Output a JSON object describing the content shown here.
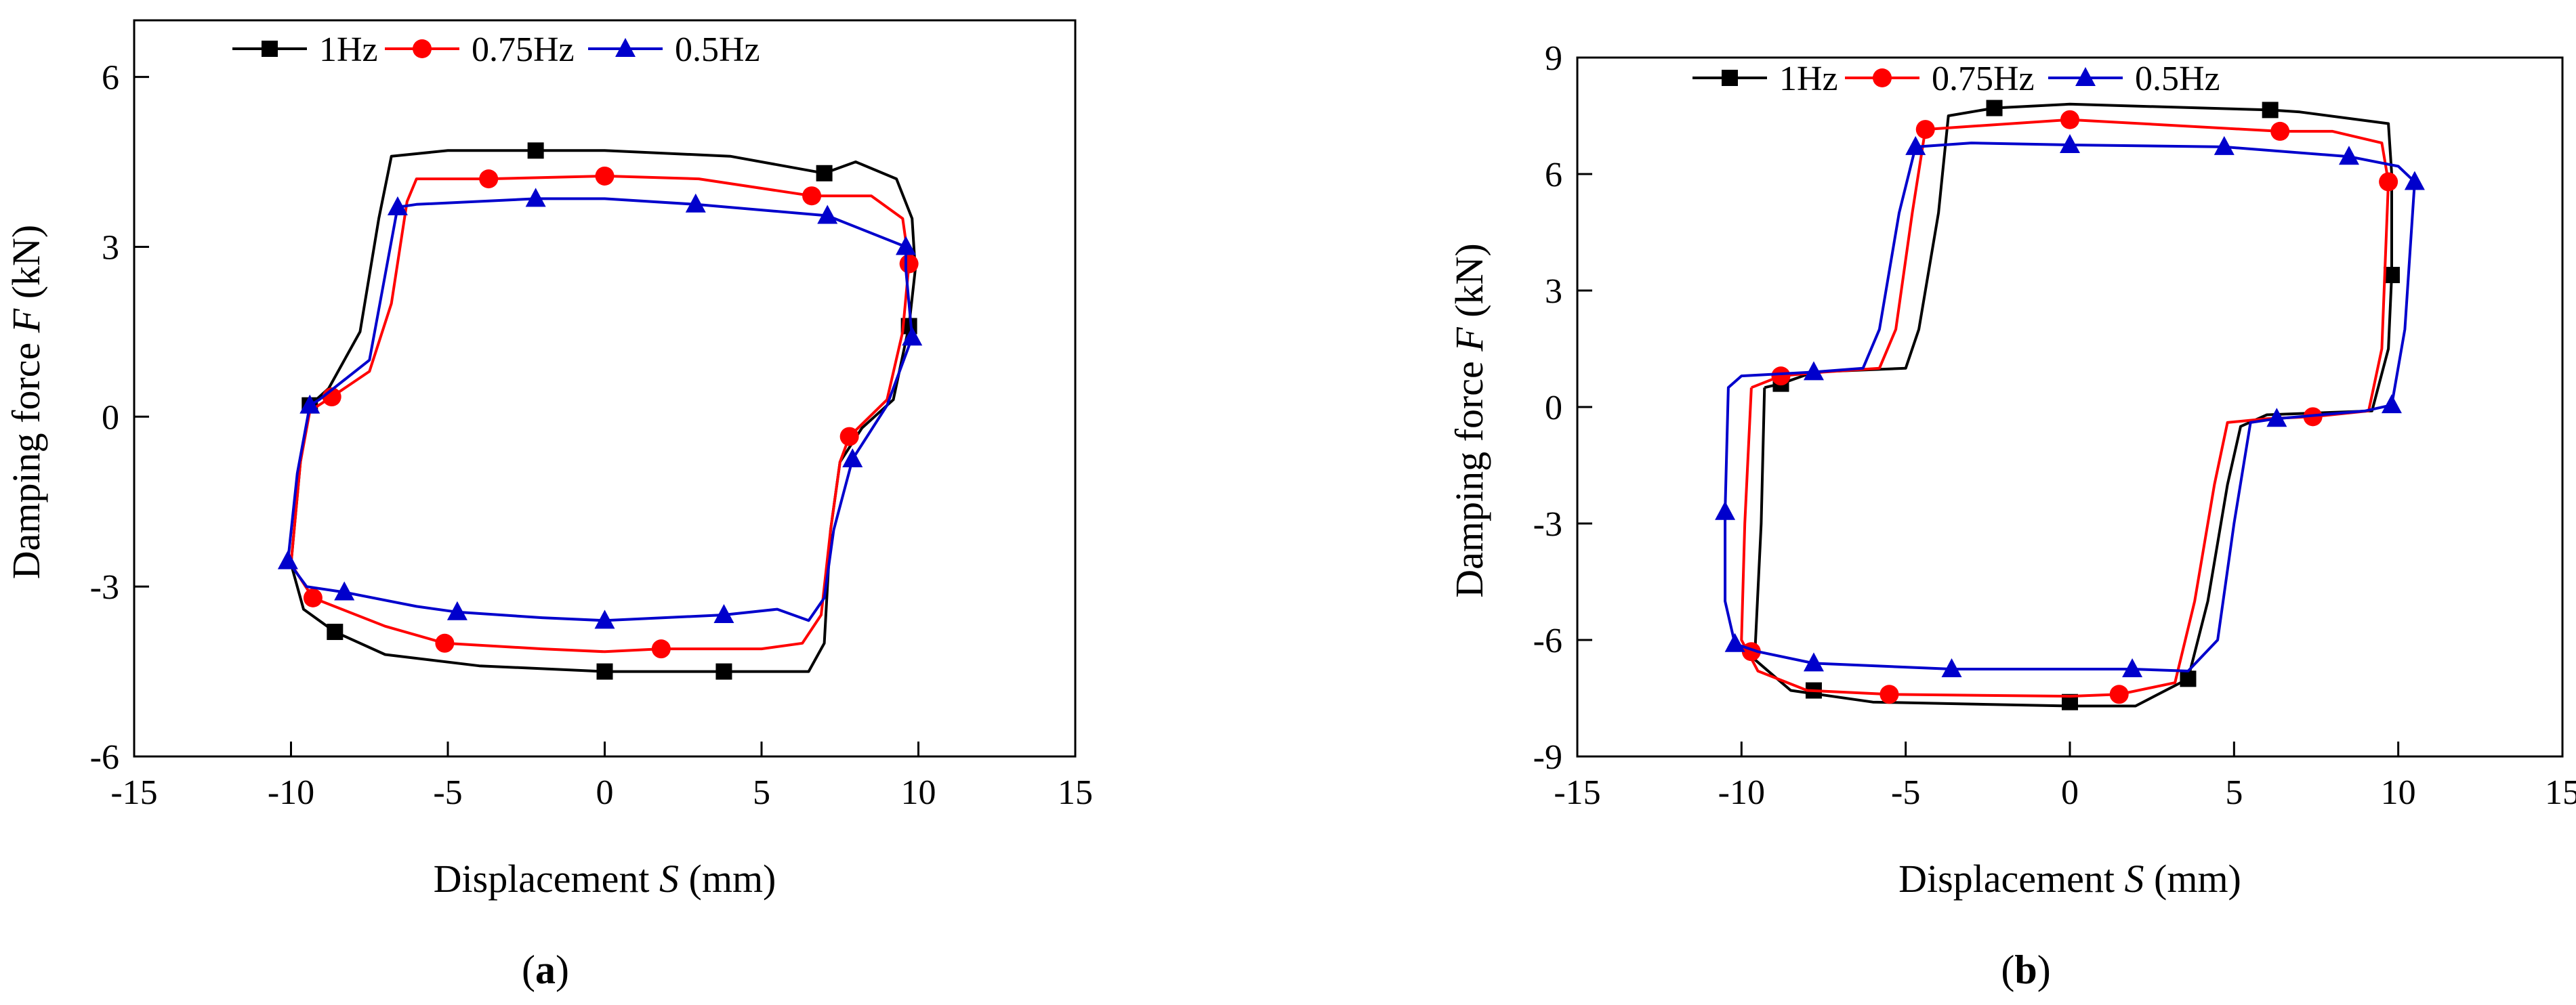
{
  "chart_data": [
    {
      "panel_label": "a",
      "type": "line",
      "xlabel": "Displacement",
      "xlabel_var": "S",
      "xlabel_unit": "(mm)",
      "ylabel": "Damping force",
      "ylabel_var": "F",
      "ylabel_unit": "(kN)",
      "xlim": [
        -15,
        15
      ],
      "ylim": [
        -6,
        7
      ],
      "xticks": [
        -15,
        -10,
        -5,
        0,
        5,
        10,
        15
      ],
      "yticks": [
        -6,
        -3,
        0,
        3,
        6
      ],
      "legend_position": "top",
      "series": [
        {
          "name": "1Hz",
          "color": "#000000",
          "marker": "square",
          "points": [
            [
              -10.0,
              -2.6
            ],
            [
              -9.6,
              -3.4
            ],
            [
              -8.6,
              -3.8
            ],
            [
              -7,
              -4.2
            ],
            [
              -4,
              -4.4
            ],
            [
              0,
              -4.5
            ],
            [
              3.8,
              -4.5
            ],
            [
              6.5,
              -4.5
            ],
            [
              7.0,
              -4.0
            ],
            [
              7.2,
              -2.0
            ],
            [
              7.5,
              -0.8
            ],
            [
              8.2,
              -0.2
            ],
            [
              9.2,
              0.3
            ],
            [
              9.7,
              1.6
            ],
            [
              9.9,
              2.6
            ],
            [
              9.8,
              3.5
            ],
            [
              9.3,
              4.2
            ],
            [
              8,
              4.5
            ],
            [
              7.0,
              4.3
            ],
            [
              4,
              4.6
            ],
            [
              0,
              4.7
            ],
            [
              -2.2,
              4.7
            ],
            [
              -5,
              4.7
            ],
            [
              -6.8,
              4.6
            ],
            [
              -7.2,
              3.5
            ],
            [
              -7.8,
              1.5
            ],
            [
              -8.8,
              0.5
            ],
            [
              -9.4,
              0.2
            ],
            [
              -9.7,
              -0.8
            ],
            [
              -10.0,
              -2.6
            ]
          ],
          "markers": [
            [
              -2.2,
              4.7
            ],
            [
              7.0,
              4.3
            ],
            [
              9.7,
              1.6
            ],
            [
              -9.4,
              0.2
            ],
            [
              -8.6,
              -3.8
            ],
            [
              0,
              -4.5
            ],
            [
              3.8,
              -4.5
            ]
          ]
        },
        {
          "name": "0.75Hz",
          "color": "#ff0000",
          "marker": "circle",
          "points": [
            [
              -10.0,
              -2.6
            ],
            [
              -9.3,
              -3.2
            ],
            [
              -7,
              -3.7
            ],
            [
              -5.1,
              -4.0
            ],
            [
              -2,
              -4.1
            ],
            [
              0,
              -4.15
            ],
            [
              1.8,
              -4.1
            ],
            [
              5,
              -4.1
            ],
            [
              6.3,
              -4.0
            ],
            [
              6.9,
              -3.5
            ],
            [
              7.2,
              -2.0
            ],
            [
              7.5,
              -0.8
            ],
            [
              7.8,
              -0.35
            ],
            [
              9.0,
              0.3
            ],
            [
              9.5,
              1.5
            ],
            [
              9.7,
              2.7
            ],
            [
              9.5,
              3.5
            ],
            [
              8.5,
              3.9
            ],
            [
              6.6,
              3.9
            ],
            [
              3,
              4.2
            ],
            [
              0,
              4.25
            ],
            [
              -3.7,
              4.2
            ],
            [
              -6,
              4.2
            ],
            [
              -6.3,
              3.8
            ],
            [
              -6.8,
              2.0
            ],
            [
              -7.5,
              0.8
            ],
            [
              -8.7,
              0.35
            ],
            [
              -9.4,
              0.1
            ],
            [
              -9.7,
              -0.8
            ],
            [
              -10.0,
              -2.6
            ]
          ],
          "markers": [
            [
              -3.7,
              4.2
            ],
            [
              0,
              4.25
            ],
            [
              6.6,
              3.9
            ],
            [
              9.7,
              2.7
            ],
            [
              7.8,
              -0.35
            ],
            [
              1.8,
              -4.1
            ],
            [
              -5.1,
              -4.0
            ],
            [
              -9.3,
              -3.2
            ],
            [
              -8.7,
              0.35
            ]
          ]
        },
        {
          "name": "0.5Hz",
          "color": "#0000cc",
          "marker": "triangle",
          "points": [
            [
              -10.1,
              -2.55
            ],
            [
              -9.5,
              -3.0
            ],
            [
              -8.3,
              -3.1
            ],
            [
              -6,
              -3.35
            ],
            [
              -4.7,
              -3.45
            ],
            [
              -2,
              -3.55
            ],
            [
              0,
              -3.6
            ],
            [
              3.8,
              -3.5
            ],
            [
              5.5,
              -3.4
            ],
            [
              6.5,
              -3.6
            ],
            [
              7.0,
              -3.2
            ],
            [
              7.3,
              -2.0
            ],
            [
              7.9,
              -0.75
            ],
            [
              9.0,
              0.2
            ],
            [
              9.8,
              1.4
            ],
            [
              9.6,
              2.6
            ],
            [
              9.6,
              3.0
            ],
            [
              7.1,
              3.55
            ],
            [
              2.9,
              3.75
            ],
            [
              0,
              3.85
            ],
            [
              -2.2,
              3.85
            ],
            [
              -6,
              3.75
            ],
            [
              -6.6,
              3.7
            ],
            [
              -7.0,
              2.5
            ],
            [
              -7.5,
              1.0
            ],
            [
              -9.1,
              0.3
            ],
            [
              -9.4,
              0.2
            ],
            [
              -9.8,
              -1.0
            ],
            [
              -10.1,
              -2.55
            ]
          ],
          "markers": [
            [
              -6.6,
              3.7
            ],
            [
              -2.2,
              3.85
            ],
            [
              2.9,
              3.75
            ],
            [
              7.1,
              3.55
            ],
            [
              9.6,
              3.0
            ],
            [
              9.8,
              1.4
            ],
            [
              7.9,
              -0.75
            ],
            [
              3.8,
              -3.5
            ],
            [
              0,
              -3.6
            ],
            [
              -4.7,
              -3.45
            ],
            [
              -8.3,
              -3.1
            ],
            [
              -10.1,
              -2.55
            ],
            [
              -9.4,
              0.2
            ]
          ]
        }
      ]
    },
    {
      "panel_label": "b",
      "type": "line",
      "xlabel": "Displacement",
      "xlabel_var": "S",
      "xlabel_unit": "(mm)",
      "ylabel": "Damping force",
      "ylabel_var": "F",
      "ylabel_unit": "(kN)",
      "xlim": [
        -15,
        15
      ],
      "ylim": [
        -9,
        9
      ],
      "xticks": [
        -15,
        -10,
        -5,
        0,
        5,
        10,
        15
      ],
      "yticks": [
        -9,
        -6,
        -3,
        0,
        3,
        6,
        9
      ],
      "legend_position": "top",
      "series": [
        {
          "name": "1Hz",
          "color": "#000000",
          "marker": "square",
          "points": [
            [
              -9.3,
              0.5
            ],
            [
              -9.4,
              -3
            ],
            [
              -9.6,
              -6.5
            ],
            [
              -8.5,
              -7.3
            ],
            [
              -6,
              -7.6
            ],
            [
              0,
              -7.7
            ],
            [
              2,
              -7.7
            ],
            [
              3.6,
              -7.0
            ],
            [
              4.2,
              -5
            ],
            [
              4.8,
              -2
            ],
            [
              5.2,
              -0.5
            ],
            [
              6,
              -0.2
            ],
            [
              9.2,
              -0.1
            ],
            [
              9.7,
              1.5
            ],
            [
              9.8,
              3.4
            ],
            [
              9.8,
              6.0
            ],
            [
              9.7,
              7.3
            ],
            [
              7,
              7.6
            ],
            [
              6.1,
              7.65
            ],
            [
              0,
              7.8
            ],
            [
              -2.3,
              7.7
            ],
            [
              -3.7,
              7.5
            ],
            [
              -4.0,
              5
            ],
            [
              -4.6,
              2
            ],
            [
              -5,
              1.0
            ],
            [
              -7.8,
              0.9
            ],
            [
              -8.8,
              0.6
            ],
            [
              -9.3,
              0.5
            ]
          ],
          "markers": [
            [
              -2.3,
              7.7
            ],
            [
              6.1,
              7.65
            ],
            [
              9.8,
              3.4
            ],
            [
              -8.8,
              0.6
            ],
            [
              -7.8,
              -7.3
            ],
            [
              0,
              -7.6
            ],
            [
              3.6,
              -7.0
            ]
          ]
        },
        {
          "name": "0.75Hz",
          "color": "#ff0000",
          "marker": "circle",
          "points": [
            [
              -9.7,
              0.5
            ],
            [
              -9.9,
              -3
            ],
            [
              -10,
              -6.0
            ],
            [
              -9.5,
              -6.8
            ],
            [
              -8,
              -7.3
            ],
            [
              -5.5,
              -7.4
            ],
            [
              0,
              -7.45
            ],
            [
              1.5,
              -7.4
            ],
            [
              3.2,
              -7.1
            ],
            [
              3.8,
              -5
            ],
            [
              4.4,
              -2
            ],
            [
              4.8,
              -0.4
            ],
            [
              6,
              -0.3
            ],
            [
              7.4,
              -0.25
            ],
            [
              9.1,
              -0.1
            ],
            [
              9.5,
              1.5
            ],
            [
              9.7,
              5.8
            ],
            [
              9.5,
              6.8
            ],
            [
              8,
              7.1
            ],
            [
              6.4,
              7.1
            ],
            [
              0,
              7.4
            ],
            [
              -4.4,
              7.15
            ],
            [
              -4.8,
              5
            ],
            [
              -5.3,
              2
            ],
            [
              -5.8,
              1.0
            ],
            [
              -7.5,
              0.9
            ],
            [
              -8.8,
              0.8
            ],
            [
              -9.7,
              0.5
            ]
          ],
          "markers": [
            [
              -4.4,
              7.15
            ],
            [
              0,
              7.4
            ],
            [
              6.4,
              7.1
            ],
            [
              9.7,
              5.8
            ],
            [
              7.4,
              -0.25
            ],
            [
              1.5,
              -7.4
            ],
            [
              -5.5,
              -7.4
            ],
            [
              -9.7,
              -6.3
            ],
            [
              -8.8,
              0.8
            ]
          ]
        },
        {
          "name": "0.5Hz",
          "color": "#0000cc",
          "marker": "triangle",
          "points": [
            [
              -10.5,
              -2.7
            ],
            [
              -10.5,
              -5.0
            ],
            [
              -10.2,
              -6.1
            ],
            [
              -9.5,
              -6.3
            ],
            [
              -7.8,
              -6.6
            ],
            [
              -3.6,
              -6.75
            ],
            [
              0,
              -6.75
            ],
            [
              1.9,
              -6.75
            ],
            [
              3.6,
              -6.8
            ],
            [
              4.5,
              -6
            ],
            [
              5,
              -3
            ],
            [
              5.5,
              -0.4
            ],
            [
              6.3,
              -0.3
            ],
            [
              9.0,
              -0.1
            ],
            [
              9.8,
              0.05
            ],
            [
              10.2,
              2
            ],
            [
              10.5,
              5.8
            ],
            [
              10,
              6.2
            ],
            [
              8.5,
              6.45
            ],
            [
              4.7,
              6.7
            ],
            [
              0,
              6.75
            ],
            [
              -3,
              6.8
            ],
            [
              -4.7,
              6.7
            ],
            [
              -5.2,
              5
            ],
            [
              -5.8,
              2
            ],
            [
              -6.3,
              1.0
            ],
            [
              -7.8,
              0.9
            ],
            [
              -10.0,
              0.8
            ],
            [
              -10.4,
              0.5
            ],
            [
              -10.5,
              -2.7
            ]
          ],
          "markers": [
            [
              -4.7,
              6.7
            ],
            [
              0,
              6.75
            ],
            [
              4.7,
              6.7
            ],
            [
              8.5,
              6.45
            ],
            [
              10.5,
              5.8
            ],
            [
              9.8,
              0.05
            ],
            [
              6.3,
              -0.3
            ],
            [
              1.9,
              -6.75
            ],
            [
              -3.6,
              -6.75
            ],
            [
              -7.8,
              -6.6
            ],
            [
              -10.2,
              -6.1
            ],
            [
              -10.5,
              -2.7
            ],
            [
              -7.8,
              0.9
            ]
          ]
        }
      ]
    }
  ]
}
